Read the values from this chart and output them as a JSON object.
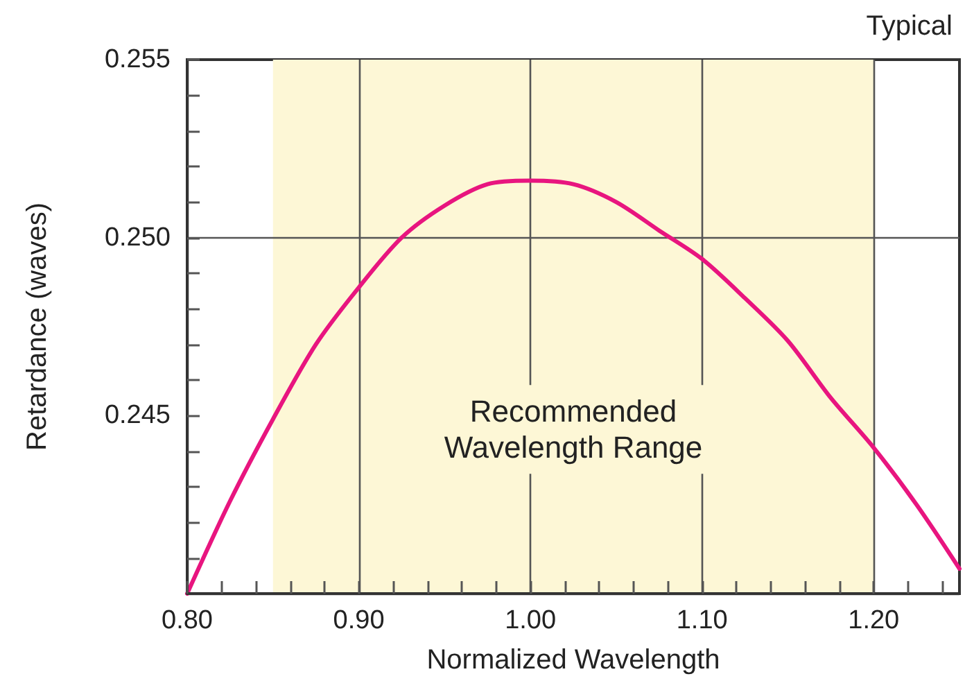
{
  "chart_data": {
    "type": "line",
    "title": "Typical",
    "xlabel": "Normalized Wavelength",
    "ylabel": "Retardance (waves)",
    "x": [
      0.8,
      0.825,
      0.85,
      0.875,
      0.9,
      0.925,
      0.95,
      0.975,
      1.0,
      1.025,
      1.05,
      1.075,
      1.1,
      1.125,
      1.15,
      1.175,
      1.2,
      1.225,
      1.25
    ],
    "series": [
      {
        "color": "#e8157f",
        "values": [
          0.24,
          0.2426,
          0.2449,
          0.247,
          0.2486,
          0.25,
          0.2509,
          0.2515,
          0.2516,
          0.2515,
          0.251,
          0.2502,
          0.2494,
          0.2483,
          0.2471,
          0.2455,
          0.2441,
          0.2425,
          0.2407
        ]
      }
    ],
    "xlim": [
      0.8,
      1.25
    ],
    "ylim": [
      0.24,
      0.255
    ],
    "xticks": [
      {
        "value": 0.8,
        "label": "0.80"
      },
      {
        "value": 0.82,
        "label": null
      },
      {
        "value": 0.84,
        "label": null
      },
      {
        "value": 0.86,
        "label": null
      },
      {
        "value": 0.88,
        "label": null
      },
      {
        "value": 0.9,
        "label": "0.90"
      },
      {
        "value": 0.92,
        "label": null
      },
      {
        "value": 0.94,
        "label": null
      },
      {
        "value": 0.96,
        "label": null
      },
      {
        "value": 0.98,
        "label": null
      },
      {
        "value": 1.0,
        "label": "1.00"
      },
      {
        "value": 1.02,
        "label": null
      },
      {
        "value": 1.04,
        "label": null
      },
      {
        "value": 1.06,
        "label": null
      },
      {
        "value": 1.08,
        "label": null
      },
      {
        "value": 1.1,
        "label": "1.10"
      },
      {
        "value": 1.12,
        "label": null
      },
      {
        "value": 1.14,
        "label": null
      },
      {
        "value": 1.16,
        "label": null
      },
      {
        "value": 1.18,
        "label": null
      },
      {
        "value": 1.2,
        "label": "1.20"
      },
      {
        "value": 1.22,
        "label": null
      },
      {
        "value": 1.24,
        "label": null
      }
    ],
    "yticks": [
      {
        "value": 0.241,
        "label": null
      },
      {
        "value": 0.242,
        "label": null
      },
      {
        "value": 0.243,
        "label": null
      },
      {
        "value": 0.244,
        "label": null
      },
      {
        "value": 0.245,
        "label": "0.245"
      },
      {
        "value": 0.246,
        "label": null
      },
      {
        "value": 0.247,
        "label": null
      },
      {
        "value": 0.248,
        "label": null
      },
      {
        "value": 0.249,
        "label": null
      },
      {
        "value": 0.25,
        "label": "0.250"
      },
      {
        "value": 0.251,
        "label": null
      },
      {
        "value": 0.252,
        "label": null
      },
      {
        "value": 0.253,
        "label": null
      },
      {
        "value": 0.254,
        "label": null
      },
      {
        "value": 0.255,
        "label": "0.255"
      }
    ],
    "bands": [
      {
        "axis": "x",
        "from": 0.85,
        "to": 1.2,
        "label": "Recommended\nWavelength Range",
        "color": "#fdf7d6"
      }
    ],
    "grid": true,
    "marker": "none",
    "line_style": "solid"
  }
}
